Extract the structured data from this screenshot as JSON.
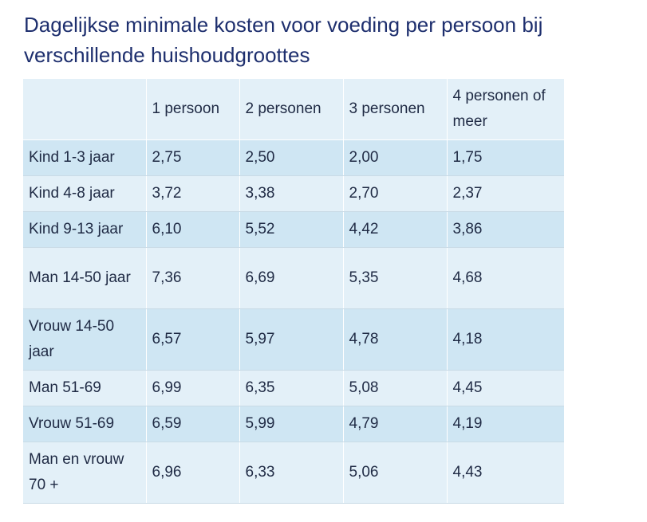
{
  "title": "Dagelijkse minimale kosten voor voeding per persoon bij verschillende huishoudgroottes",
  "table": {
    "headers": [
      "",
      "1 persoon",
      "2 personen",
      "3 personen",
      "4 personen of meer"
    ],
    "rows": [
      {
        "label": "Kind 1-3 jaar",
        "values": [
          "2,75",
          "2,50",
          "2,00",
          "1,75"
        ]
      },
      {
        "label": "Kind 4-8 jaar",
        "values": [
          "3,72",
          "3,38",
          "2,70",
          "2,37"
        ]
      },
      {
        "label": "Kind 9-13 jaar",
        "values": [
          "6,10",
          "5,52",
          "4,42",
          "3,86"
        ]
      },
      {
        "label": "Man 14-50 jaar",
        "values": [
          "7,36",
          "6,69",
          "5,35",
          "4,68"
        ]
      },
      {
        "label": "Vrouw 14-50 jaar",
        "values": [
          "6,57",
          "5,97",
          "4,78",
          "4,18"
        ]
      },
      {
        "label": "Man 51-69",
        "values": [
          "6,99",
          "6,35",
          "5,08",
          "4,45"
        ]
      },
      {
        "label": "Vrouw 51-69",
        "values": [
          "6,59",
          "5,99",
          "4,79",
          "4,19"
        ]
      },
      {
        "label": "Man en vrouw 70 +",
        "values": [
          "6,96",
          "6,33",
          "5,06",
          "4,43"
        ]
      }
    ]
  },
  "colors": {
    "title": "#1e2f6e",
    "text": "#1f2a44",
    "row_dark": "#cfe6f3",
    "row_light": "#e3f0f8"
  }
}
